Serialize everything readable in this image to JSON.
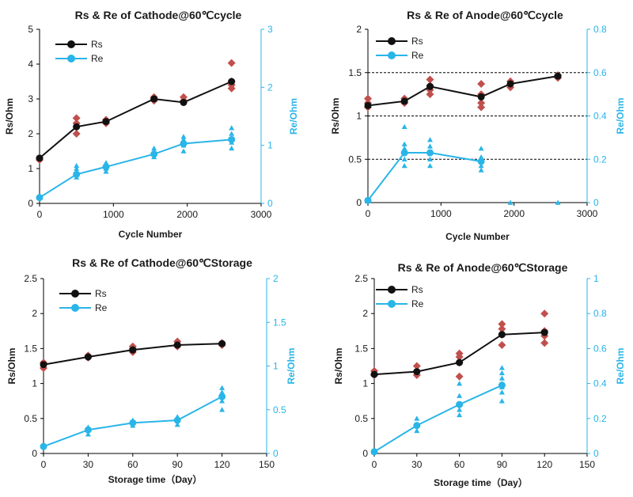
{
  "colors": {
    "rs_line": "#111111",
    "re_line": "#29b5e8",
    "rs_scatter": "#c0504d",
    "re_scatter": "#29b5e8",
    "axis_right": "#29b5e8",
    "grid": "#000000"
  },
  "chart_data": [
    {
      "type": "scatter",
      "title": "Rs & Re of Cathode@60℃cycle",
      "xlabel": "Cycle Number",
      "ylabel": "Rs/Ohm",
      "y2label": "Re/Ohm",
      "xlim": [
        0,
        3000
      ],
      "xticks": [
        0,
        1000,
        2000,
        3000
      ],
      "xtick_labels": [
        "0",
        "1000",
        "2000",
        "3000"
      ],
      "ylim": [
        0,
        5
      ],
      "yticks": [
        0,
        1,
        2,
        3,
        4,
        5
      ],
      "ytick_labels": [
        "0",
        "1",
        "2",
        "3",
        "4",
        "5"
      ],
      "y2lim": [
        0,
        3
      ],
      "y2ticks": [
        0,
        1,
        2,
        3
      ],
      "y2tick_labels": [
        "0",
        "1",
        "2",
        "3"
      ],
      "gridlines": [],
      "legend": {
        "placement": "top-left",
        "items": [
          "Rs",
          "Re"
        ]
      },
      "series": [
        {
          "name": "Rs",
          "axis": "left",
          "x": [
            0,
            500,
            900,
            1550,
            1950,
            2600
          ],
          "y": [
            1.3,
            2.2,
            2.35,
            3.0,
            2.9,
            3.5
          ]
        },
        {
          "name": "Re",
          "axis": "right",
          "x": [
            0,
            500,
            900,
            1550,
            1950,
            2600
          ],
          "y": [
            0.1,
            0.5,
            0.63,
            0.85,
            1.03,
            1.1
          ]
        }
      ],
      "rs_scatter": {
        "x": [
          0,
          0,
          500,
          500,
          500,
          500,
          900,
          900,
          900,
          1550,
          1550,
          1550,
          1950,
          1950,
          1950,
          2600,
          2600,
          2600,
          2600
        ],
        "y": [
          1.3,
          1.25,
          2.0,
          2.2,
          2.3,
          2.45,
          2.3,
          2.35,
          2.4,
          2.95,
          3.0,
          3.05,
          2.9,
          2.95,
          3.05,
          3.3,
          3.4,
          3.5,
          4.03
        ]
      },
      "re_scatter": {
        "x": [
          0,
          500,
          500,
          500,
          500,
          900,
          900,
          900,
          900,
          1550,
          1550,
          1550,
          1550,
          1950,
          1950,
          1950,
          1950,
          1950,
          2600,
          2600,
          2600,
          2600,
          2600
        ],
        "y": [
          0.1,
          0.45,
          0.55,
          0.6,
          0.65,
          0.55,
          0.6,
          0.65,
          0.7,
          0.8,
          0.85,
          0.9,
          0.95,
          0.9,
          1.0,
          1.05,
          1.1,
          1.15,
          0.95,
          1.05,
          1.1,
          1.2,
          1.3
        ]
      }
    },
    {
      "type": "scatter",
      "title": "Rs & Re of Anode@60℃cycle",
      "xlabel": "Cycle Number",
      "ylabel": "Rs/Ohm",
      "y2label": "Re/Ohm",
      "xlim": [
        0,
        3000
      ],
      "xticks": [
        0,
        1000,
        2000,
        3000
      ],
      "xtick_labels": [
        "0",
        "1000",
        "2000",
        "3000"
      ],
      "ylim": [
        0,
        2
      ],
      "yticks": [
        0,
        0.5,
        1,
        1.5,
        2
      ],
      "ytick_labels": [
        "0",
        "0.5",
        "1",
        "1.5",
        "2"
      ],
      "y2lim": [
        0,
        0.8
      ],
      "y2ticks": [
        0,
        0.2,
        0.4,
        0.6,
        0.8
      ],
      "y2tick_labels": [
        "0",
        "0.2",
        "0.4",
        "0.6",
        "0.8"
      ],
      "gridlines": [
        0.5,
        1,
        1.5
      ],
      "legend": {
        "placement": "top-left",
        "items": [
          "Rs",
          "Re"
        ]
      },
      "series": [
        {
          "name": "Rs",
          "axis": "left",
          "x": [
            0,
            500,
            850,
            1550,
            1950,
            2600
          ],
          "y": [
            1.12,
            1.17,
            1.34,
            1.22,
            1.37,
            1.46
          ]
        },
        {
          "name": "Re",
          "axis": "right",
          "x": [
            0,
            500,
            850,
            1550
          ],
          "y": [
            0.01,
            0.23,
            0.23,
            0.19
          ]
        }
      ],
      "rs_scatter": {
        "x": [
          0,
          0,
          0,
          500,
          500,
          850,
          850,
          850,
          850,
          1550,
          1550,
          1550,
          1550,
          1950,
          1950,
          1950,
          2600,
          2600
        ],
        "y": [
          1.1,
          1.15,
          1.2,
          1.15,
          1.2,
          1.25,
          1.3,
          1.35,
          1.42,
          1.1,
          1.15,
          1.25,
          1.37,
          1.33,
          1.37,
          1.4,
          1.44,
          1.47
        ]
      },
      "re_scatter": {
        "x": [
          0,
          500,
          500,
          500,
          500,
          500,
          500,
          850,
          850,
          850,
          850,
          850,
          1550,
          1550,
          1550,
          1550,
          1550,
          1950,
          2600
        ],
        "y": [
          0.01,
          0.17,
          0.2,
          0.23,
          0.25,
          0.27,
          0.35,
          0.17,
          0.2,
          0.23,
          0.26,
          0.29,
          0.15,
          0.17,
          0.19,
          0.21,
          0.25,
          0.0,
          0.0
        ]
      }
    },
    {
      "type": "scatter",
      "title": "Rs & Re of Cathode@60℃Storage",
      "xlabel": "Storage time（Day）",
      "ylabel": "Rs/Ohm",
      "y2label": "Re/Ohm",
      "xlim": [
        0,
        150
      ],
      "xticks": [
        0,
        30,
        60,
        90,
        120,
        150
      ],
      "xtick_labels": [
        "0",
        "30",
        "60",
        "90",
        "120",
        "150"
      ],
      "ylim": [
        0,
        2.5
      ],
      "yticks": [
        0,
        0.5,
        1,
        1.5,
        2,
        2.5
      ],
      "ytick_labels": [
        "0",
        "0.5",
        "1",
        "1.5",
        "2",
        "2.5"
      ],
      "y2lim": [
        0,
        2
      ],
      "y2ticks": [
        0,
        0.5,
        1,
        1.5,
        2
      ],
      "y2tick_labels": [
        "0",
        "0.5",
        "1",
        "1.5",
        "2"
      ],
      "gridlines": [],
      "legend": {
        "placement": "top-left",
        "items": [
          "Rs",
          "Re"
        ]
      },
      "series": [
        {
          "name": "Rs",
          "axis": "left",
          "x": [
            0,
            30,
            60,
            90,
            120
          ],
          "y": [
            1.27,
            1.38,
            1.48,
            1.55,
            1.57
          ]
        },
        {
          "name": "Re",
          "axis": "right",
          "x": [
            0,
            30,
            60,
            90,
            120
          ],
          "y": [
            0.08,
            0.27,
            0.35,
            0.38,
            0.65
          ]
        }
      ],
      "rs_scatter": {
        "x": [
          0,
          0,
          30,
          30,
          60,
          60,
          60,
          90,
          90,
          90,
          120,
          120
        ],
        "y": [
          1.22,
          1.3,
          1.37,
          1.4,
          1.45,
          1.5,
          1.53,
          1.53,
          1.56,
          1.6,
          1.55,
          1.58
        ]
      },
      "re_scatter": {
        "x": [
          0,
          30,
          30,
          30,
          60,
          60,
          60,
          90,
          90,
          90,
          120,
          120,
          120,
          120,
          120
        ],
        "y": [
          0.08,
          0.22,
          0.27,
          0.3,
          0.32,
          0.35,
          0.38,
          0.33,
          0.38,
          0.42,
          0.5,
          0.6,
          0.65,
          0.7,
          0.75
        ]
      }
    },
    {
      "type": "scatter",
      "title": "Rs & Re of Anode@60℃Storage",
      "xlabel": "Storage time（Day）",
      "ylabel": "Rs/Ohm",
      "y2label": "Re/Ohm",
      "xlim": [
        0,
        150
      ],
      "xticks": [
        0,
        30,
        60,
        90,
        120,
        150
      ],
      "xtick_labels": [
        "0",
        "30",
        "60",
        "90",
        "120",
        "150"
      ],
      "ylim": [
        0,
        2.5
      ],
      "yticks": [
        0,
        0.5,
        1,
        1.5,
        2,
        2.5
      ],
      "ytick_labels": [
        "0",
        "0.5",
        "1",
        "1.5",
        "2",
        "2.5"
      ],
      "y2lim": [
        0,
        1
      ],
      "y2ticks": [
        0,
        0.2,
        0.4,
        0.6,
        0.8,
        1
      ],
      "y2tick_labels": [
        "0",
        "0.2",
        "0.4",
        "0.6",
        "0.8",
        "1"
      ],
      "gridlines": [],
      "legend": {
        "placement": "top-left",
        "items": [
          "Rs",
          "Re"
        ]
      },
      "series": [
        {
          "name": "Rs",
          "axis": "left",
          "x": [
            0,
            30,
            60,
            90,
            120
          ],
          "y": [
            1.13,
            1.17,
            1.3,
            1.7,
            1.73
          ]
        },
        {
          "name": "Re",
          "axis": "right",
          "x": [
            0,
            30,
            60,
            90
          ],
          "y": [
            0.01,
            0.16,
            0.28,
            0.39
          ]
        }
      ],
      "rs_scatter": {
        "x": [
          0,
          0,
          30,
          30,
          30,
          60,
          60,
          60,
          60,
          90,
          90,
          90,
          90,
          120,
          120,
          120,
          120
        ],
        "y": [
          1.12,
          1.18,
          1.12,
          1.18,
          1.25,
          1.1,
          1.3,
          1.38,
          1.43,
          1.55,
          1.7,
          1.78,
          1.85,
          1.58,
          1.68,
          1.75,
          2.0
        ]
      },
      "re_scatter": {
        "x": [
          0,
          30,
          30,
          30,
          60,
          60,
          60,
          60,
          60,
          90,
          90,
          90,
          90,
          90,
          90,
          90
        ],
        "y": [
          0.01,
          0.13,
          0.16,
          0.2,
          0.22,
          0.25,
          0.28,
          0.33,
          0.4,
          0.3,
          0.35,
          0.38,
          0.4,
          0.43,
          0.46,
          0.49
        ]
      }
    }
  ]
}
